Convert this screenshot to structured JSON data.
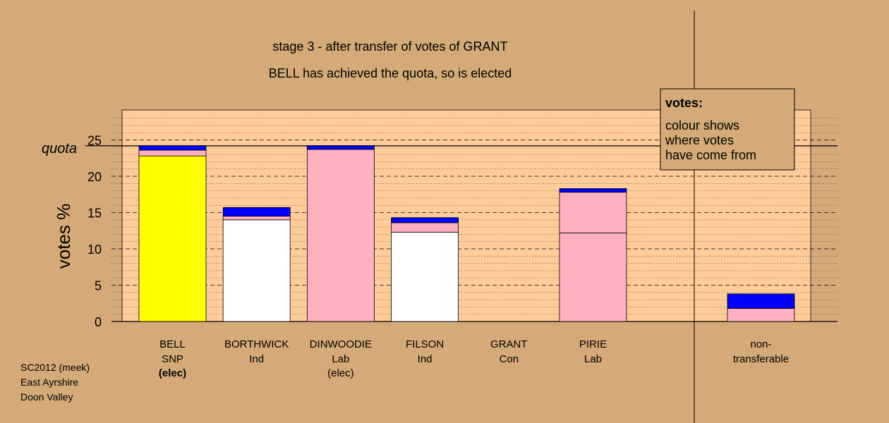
{
  "chart_data": {
    "type": "bar",
    "stacked": true,
    "title": "stage 3 - after transfer of votes of GRANT",
    "subtitle": "BELL has achieved the quota, so is elected",
    "ylabel": "votes %",
    "ylim": [
      0,
      29
    ],
    "yticks": [
      0,
      5,
      10,
      15,
      20,
      25
    ],
    "quota": 24.2,
    "quota_label": "quota",
    "grid": true,
    "candidates": [
      {
        "name": "BELL",
        "party": "SNP",
        "status": "(elec)",
        "status_bold": true,
        "segments": [
          {
            "value": 22.8,
            "color": "#ffff00"
          },
          {
            "value": 0.8,
            "color": "#ffb0c0"
          },
          {
            "value": 0.6,
            "color": "#0000ff"
          }
        ]
      },
      {
        "name": "BORTHWICK",
        "party": "Ind",
        "status": "",
        "segments": [
          {
            "value": 14.0,
            "color": "#ffffff"
          },
          {
            "value": 0.5,
            "color": "#ffb0c0"
          },
          {
            "value": 1.2,
            "color": "#0000ff"
          }
        ]
      },
      {
        "name": "DINWOODIE",
        "party": "Lab",
        "status": "(elec)",
        "status_bold": false,
        "segments": [
          {
            "value": 23.7,
            "color": "#ffb0c0"
          },
          {
            "value": 0.5,
            "color": "#0000ff"
          }
        ]
      },
      {
        "name": "FILSON",
        "party": "Ind",
        "status": "",
        "segments": [
          {
            "value": 12.3,
            "color": "#ffffff"
          },
          {
            "value": 1.3,
            "color": "#ffb0c0"
          },
          {
            "value": 0.7,
            "color": "#0000ff"
          }
        ]
      },
      {
        "name": "GRANT",
        "party": "Con",
        "status": "",
        "segments": []
      },
      {
        "name": "PIRIE",
        "party": "Lab",
        "status": "",
        "segments": [
          {
            "value": 12.2,
            "color": "#ffb0c0"
          },
          {
            "value": 5.6,
            "color": "#ffb0c0"
          },
          {
            "value": 0.5,
            "color": "#0000ff"
          }
        ]
      }
    ],
    "nontransferable": {
      "name": "non-",
      "party": "transferable",
      "segments": [
        {
          "value": 1.8,
          "color": "#ffb0c0"
        },
        {
          "value": 2.0,
          "color": "#0000ff"
        }
      ]
    },
    "legend": {
      "title": "votes:",
      "lines": [
        "colour shows",
        "where votes",
        "have come from"
      ],
      "position": "top-right"
    },
    "footer": [
      "SC2012 (meek)",
      "East Ayrshire",
      "Doon Valley"
    ]
  },
  "colors": {
    "background": "#d4aa78",
    "plot_area": "#ffcc99",
    "axis": "#000000"
  }
}
